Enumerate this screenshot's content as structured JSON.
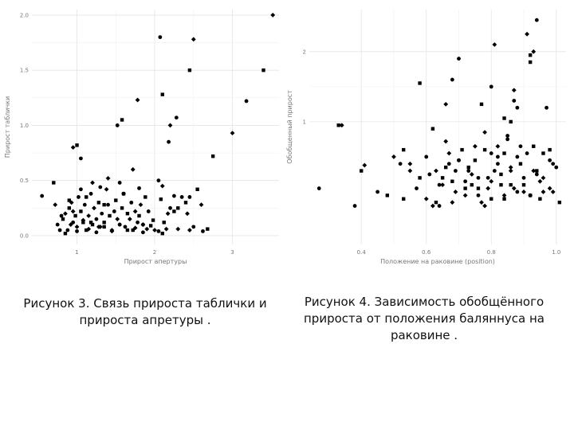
{
  "chart_data": [
    {
      "type": "scatter",
      "title": "",
      "xlabel": "Прирост апертуры",
      "ylabel": "Прирост таблички",
      "xlim": [
        0.42,
        3.6
      ],
      "ylim": [
        -0.08,
        2.05
      ],
      "xticks": [
        1,
        2,
        3
      ],
      "yticks": [
        0.0,
        0.5,
        1.0,
        1.5,
        2.0
      ],
      "xtick_labels": [
        "1",
        "2",
        "3"
      ],
      "ytick_labels": [
        "0.0",
        "0.5",
        "1.0",
        "1.5",
        "2.0"
      ],
      "grid": true,
      "legend": "none",
      "marker_color": "#000000",
      "x": [
        0.55,
        0.7,
        0.72,
        0.8,
        0.9,
        0.95,
        1.05,
        1.12,
        1.2,
        1.3,
        1.35,
        1.4,
        1.55,
        1.6,
        1.72,
        1.8,
        2.08,
        2.1,
        2.25,
        2.12,
        2.17,
        2.05,
        2.3,
        2.42,
        2.45,
        2.75,
        3.0,
        3.18,
        3.4,
        3.52,
        0.75,
        0.82,
        0.85,
        0.88,
        0.9,
        0.93,
        0.95,
        0.98,
        1.0,
        1.02,
        1.05,
        1.08,
        1.1,
        1.12,
        1.15,
        1.18,
        1.2,
        1.22,
        1.25,
        1.28,
        1.3,
        1.32,
        1.35,
        1.38,
        1.4,
        1.42,
        1.45,
        1.48,
        1.5,
        1.52,
        1.55,
        1.58,
        1.6,
        1.62,
        1.65,
        1.68,
        1.7,
        1.72,
        1.75,
        1.78,
        1.8,
        1.82,
        1.85,
        1.88,
        1.9,
        0.78,
        0.85,
        0.92,
        1.0,
        1.08,
        1.15,
        1.25,
        1.35,
        1.45,
        1.55,
        1.65,
        1.75,
        1.85,
        1.95,
        2.0,
        2.05,
        2.1,
        2.15,
        2.2,
        2.25,
        2.3,
        2.35,
        2.4,
        2.45,
        2.5,
        2.55,
        2.6,
        2.62,
        2.68,
        1.85,
        1.92,
        1.98,
        0.95,
        1.05,
        1.18,
        1.28
      ],
      "y": [
        0.36,
        0.48,
        0.28,
        0.18,
        0.32,
        0.22,
        0.42,
        0.35,
        0.48,
        0.44,
        0.28,
        0.52,
        0.48,
        0.38,
        0.6,
        0.43,
        0.33,
        0.45,
        0.36,
        0.12,
        0.2,
        0.5,
        0.25,
        0.2,
        0.35,
        0.72,
        0.93,
        1.22,
        1.5,
        2.0,
        0.1,
        0.15,
        0.2,
        0.05,
        0.25,
        0.3,
        0.12,
        0.18,
        0.08,
        0.35,
        0.22,
        0.14,
        0.28,
        0.05,
        0.18,
        0.38,
        0.1,
        0.25,
        0.15,
        0.3,
        0.08,
        0.2,
        0.12,
        0.42,
        0.28,
        0.18,
        0.05,
        0.22,
        0.32,
        0.15,
        0.1,
        0.25,
        0.38,
        0.08,
        0.2,
        0.15,
        0.3,
        0.05,
        0.22,
        0.12,
        0.18,
        0.28,
        0.1,
        0.35,
        0.06,
        0.05,
        0.02,
        0.1,
        0.04,
        0.12,
        0.06,
        0.03,
        0.08,
        0.04,
        0.1,
        0.05,
        0.07,
        0.03,
        0.09,
        0.05,
        0.04,
        0.02,
        0.06,
        0.25,
        0.22,
        0.06,
        0.35,
        0.3,
        0.05,
        0.08,
        0.42,
        0.28,
        0.04,
        0.06,
        0.1,
        0.22,
        0.14,
        0.8,
        0.7,
        0.12,
        0.08
      ],
      "x_extra": [
        1.52,
        1.58,
        1.78,
        2.07,
        2.1,
        2.2,
        2.28,
        2.45,
        2.5,
        2.18,
        1.0
      ],
      "y_extra": [
        1.0,
        1.05,
        1.23,
        1.8,
        1.28,
        1.0,
        1.07,
        1.5,
        1.78,
        0.85,
        0.82
      ]
    },
    {
      "type": "scatter",
      "title": "",
      "xlabel": "Положение на раковине (position)",
      "ylabel": "Обобщенный прирост",
      "xlim": [
        0.24,
        1.03
      ],
      "ylim": [
        -0.75,
        2.6
      ],
      "xticks": [
        0.4,
        0.6,
        0.8,
        1.0
      ],
      "yticks": [
        1,
        2
      ],
      "xtick_labels": [
        "0.4",
        "0.6",
        "0.8",
        "1.0"
      ],
      "ytick_labels": [
        "1",
        "2"
      ],
      "grid": true,
      "legend": "none",
      "marker_color": "#000000",
      "x": [
        0.27,
        0.33,
        0.34,
        0.38,
        0.4,
        0.41,
        0.45,
        0.48,
        0.5,
        0.52,
        0.53,
        0.55,
        0.57,
        0.58,
        0.6,
        0.61,
        0.62,
        0.63,
        0.64,
        0.65,
        0.66,
        0.67,
        0.68,
        0.69,
        0.7,
        0.71,
        0.72,
        0.73,
        0.74,
        0.75,
        0.76,
        0.77,
        0.78,
        0.79,
        0.8,
        0.81,
        0.82,
        0.83,
        0.84,
        0.85,
        0.86,
        0.87,
        0.88,
        0.89,
        0.9,
        0.91,
        0.92,
        0.93,
        0.94,
        0.95,
        0.96,
        0.97,
        0.98,
        0.99,
        1.0,
        1.01,
        0.62,
        0.64,
        0.66,
        0.68,
        0.7,
        0.72,
        0.74,
        0.76,
        0.78,
        0.8,
        0.82,
        0.84,
        0.86,
        0.88,
        0.9,
        0.92,
        0.94,
        0.96,
        0.98,
        0.72,
        0.75,
        0.78,
        0.81,
        0.84,
        0.87,
        0.9,
        0.93,
        0.96,
        0.99,
        0.58,
        0.65,
        0.7,
        0.76,
        0.82,
        0.88,
        0.94,
        0.77,
        0.8,
        0.83,
        0.86,
        0.89,
        0.92,
        0.95,
        0.98,
        0.53,
        0.55,
        0.6,
        0.63,
        0.67,
        0.69,
        0.73,
        0.79,
        0.85
      ],
      "y": [
        0.05,
        0.95,
        0.95,
        -0.2,
        0.3,
        0.38,
        0.0,
        -0.05,
        0.5,
        0.4,
        -0.1,
        0.4,
        0.05,
        1.55,
        -0.1,
        0.25,
        0.9,
        0.3,
        -0.2,
        0.2,
        0.72,
        0.4,
        0.15,
        0.0,
        1.9,
        0.6,
        -0.05,
        0.3,
        0.1,
        0.65,
        0.2,
        1.25,
        0.85,
        0.2,
        -0.1,
        2.1,
        0.5,
        0.25,
        -0.05,
        0.75,
        0.1,
        1.45,
        1.2,
        0.4,
        0.0,
        0.55,
        1.85,
        0.3,
        2.45,
        -0.1,
        0.2,
        1.2,
        0.6,
        0.0,
        0.35,
        -0.15,
        -0.2,
        0.1,
        0.35,
        -0.15,
        0.45,
        0.05,
        0.25,
        -0.05,
        0.6,
        0.15,
        0.4,
        -0.1,
        0.3,
        0.5,
        0.1,
        -0.05,
        0.25,
        0.55,
        0.05,
        0.15,
        0.45,
        -0.2,
        0.3,
        0.55,
        0.05,
        0.2,
        0.65,
        0.0,
        0.4,
        0.2,
        0.1,
        0.45,
        0.05,
        0.65,
        0.0,
        0.3,
        -0.15,
        0.55,
        0.1,
        0.35,
        0.65,
        -0.05,
        0.15,
        0.45,
        0.6,
        0.3,
        0.5,
        -0.15,
        0.55,
        0.3,
        0.35,
        0.05,
        0.8
      ],
      "x_extra": [
        0.92,
        0.91,
        0.8,
        0.84,
        0.93,
        0.87,
        0.86,
        0.66,
        0.68
      ],
      "y_extra": [
        1.95,
        2.25,
        1.5,
        1.05,
        2.0,
        1.3,
        1.0,
        1.25,
        1.6
      ]
    }
  ],
  "captions": {
    "fig3_line1": "Рисунок 3. Связь прироста таблички и",
    "fig3_line2": "прироста апретуры .",
    "fig4_line1": "Рисунок 4. Зависимость обобщённого",
    "fig4_line2": "прироста от положения баляннуса на",
    "fig4_line3": "раковине ."
  }
}
